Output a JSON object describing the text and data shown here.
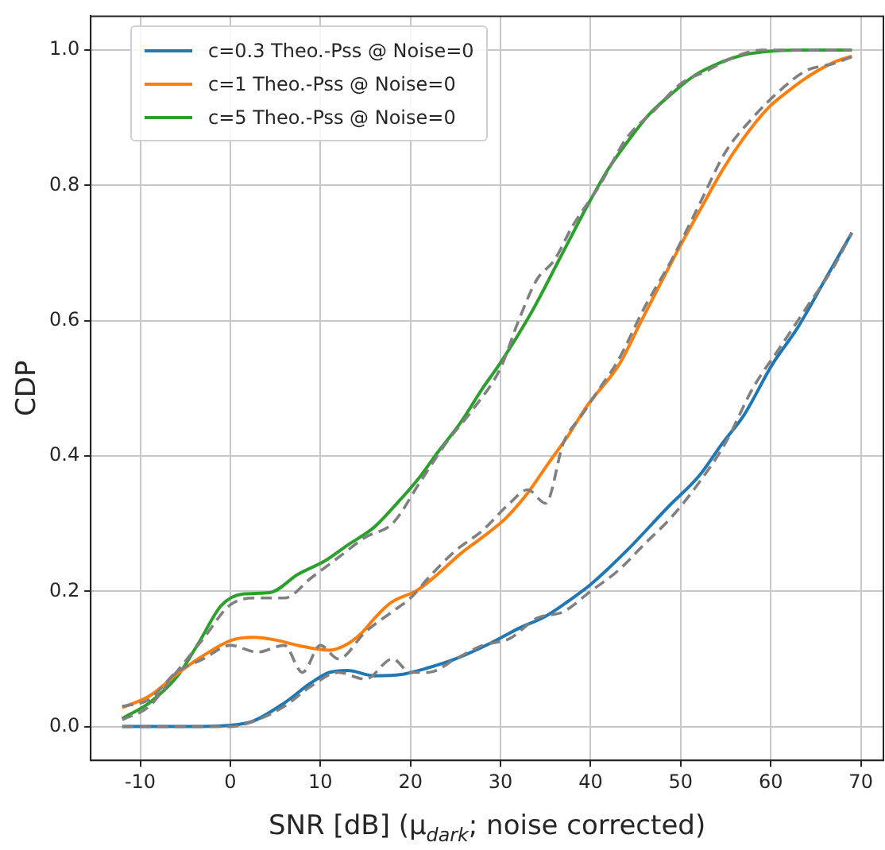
{
  "chart_data": {
    "type": "line",
    "xlabel": "SNR [dB] (μ$_{dark}$; noise corrected)",
    "ylabel": "CDP",
    "xlim": [
      -15.5,
      72.5
    ],
    "ylim": [
      -0.05,
      1.05
    ],
    "xticks": [
      -10,
      0,
      10,
      20,
      30,
      40,
      50,
      60,
      70
    ],
    "yticks": [
      {
        "value": 0,
        "label": "0.0"
      },
      {
        "value": 0.2,
        "label": "0.2"
      },
      {
        "value": 0.4,
        "label": "0.4"
      },
      {
        "value": 0.6,
        "label": "0.6"
      },
      {
        "value": 0.8,
        "label": "0.8"
      },
      {
        "value": 1,
        "label": "1.0"
      }
    ],
    "grid": true,
    "legend": "top left",
    "marker": "none",
    "series": [
      {
        "color": "#808080",
        "line_style": "dashed",
        "x": [
          -12,
          -9,
          -6,
          -3,
          0,
          3,
          6,
          9,
          12,
          15,
          18,
          20,
          22,
          25,
          28,
          31,
          34,
          37,
          40,
          43,
          46,
          49,
          52,
          55,
          58,
          61,
          64,
          67,
          69
        ],
        "values": [
          0.0,
          0.0,
          0.0,
          0.0,
          0.0,
          0.01,
          0.03,
          0.06,
          0.08,
          0.07,
          0.1,
          0.08,
          0.08,
          0.1,
          0.12,
          0.13,
          0.16,
          0.17,
          0.2,
          0.23,
          0.27,
          0.31,
          0.36,
          0.42,
          0.5,
          0.56,
          0.62,
          0.68,
          0.73
        ]
      },
      {
        "color": "#808080",
        "line_style": "dashed",
        "x": [
          -12,
          -9,
          -6,
          -3,
          0,
          3,
          6,
          8,
          10,
          12,
          15,
          18,
          20,
          22,
          25,
          28,
          31,
          33,
          35,
          37,
          39,
          41,
          43,
          46,
          49,
          52,
          55,
          58,
          61,
          64,
          67,
          69
        ],
        "values": [
          0.03,
          0.04,
          0.08,
          0.1,
          0.12,
          0.11,
          0.12,
          0.08,
          0.12,
          0.1,
          0.14,
          0.17,
          0.19,
          0.22,
          0.26,
          0.29,
          0.33,
          0.35,
          0.33,
          0.42,
          0.46,
          0.5,
          0.54,
          0.62,
          0.69,
          0.77,
          0.85,
          0.9,
          0.94,
          0.97,
          0.98,
          0.99
        ]
      },
      {
        "color": "#808080",
        "line_style": "dashed",
        "x": [
          -12,
          -9,
          -6,
          -3,
          0,
          3,
          6,
          9,
          12,
          15,
          18,
          21,
          24,
          27,
          30,
          32,
          34,
          36,
          38,
          41,
          44,
          47,
          50,
          53,
          56,
          59,
          62,
          65,
          69
        ],
        "values": [
          0.01,
          0.03,
          0.08,
          0.13,
          0.18,
          0.19,
          0.19,
          0.22,
          0.25,
          0.28,
          0.3,
          0.36,
          0.42,
          0.47,
          0.53,
          0.6,
          0.66,
          0.69,
          0.74,
          0.8,
          0.87,
          0.91,
          0.95,
          0.97,
          0.99,
          1.0,
          1.0,
          1.0,
          1.0
        ]
      },
      {
        "name": "c=0.3 Theo.-Pss @ Noise=0",
        "color": "#1f77b4",
        "line_style": "solid",
        "x": [
          -12,
          -5,
          0,
          2.5,
          6,
          9,
          11,
          13,
          16,
          19,
          22,
          25,
          29,
          32,
          35,
          38,
          40,
          44,
          48.7,
          52,
          54.7,
          57,
          60.2,
          63,
          66,
          69
        ],
        "values": [
          0.0,
          0.0,
          0.002,
          0.008,
          0.035,
          0.065,
          0.08,
          0.083,
          0.075,
          0.077,
          0.087,
          0.1,
          0.124,
          0.145,
          0.163,
          0.19,
          0.21,
          0.26,
          0.326,
          0.37,
          0.42,
          0.46,
          0.536,
          0.59,
          0.66,
          0.73
        ]
      },
      {
        "name": "c=1 Theo.-Pss @ Noise=0",
        "color": "#ff7f0e",
        "line_style": "solid",
        "x": [
          -12,
          -9,
          -5.9,
          -3,
          0.2,
          2.6,
          5,
          7.5,
          11,
          13,
          14.7,
          16,
          17.8,
          20.8,
          23,
          25.6,
          28,
          30.5,
          33,
          35.3,
          37.5,
          39.6,
          43.2,
          45.6,
          49.8,
          52,
          54.7,
          57,
          59.6,
          62,
          64.4,
          67,
          69
        ],
        "values": [
          0.028,
          0.045,
          0.078,
          0.105,
          0.128,
          0.132,
          0.128,
          0.12,
          0.113,
          0.122,
          0.14,
          0.16,
          0.183,
          0.202,
          0.225,
          0.256,
          0.28,
          0.307,
          0.345,
          0.389,
          0.43,
          0.474,
          0.536,
          0.599,
          0.707,
          0.76,
          0.824,
          0.87,
          0.913,
          0.94,
          0.963,
          0.982,
          0.991
        ]
      },
      {
        "name": "c=5 Theo.-Pss @ Noise=0",
        "color": "#2ca02c",
        "line_style": "solid",
        "x": [
          -12,
          -9,
          -5.9,
          -3.5,
          -1,
          1.4,
          4.4,
          7.5,
          10.5,
          13,
          16,
          18.5,
          20.8,
          23,
          25.6,
          28,
          29.9,
          33.5,
          36.5,
          39.6,
          42,
          44.4,
          46.5,
          48.7,
          51.5,
          54.7,
          57,
          59.6,
          63,
          66,
          69
        ],
        "values": [
          0.012,
          0.035,
          0.074,
          0.124,
          0.179,
          0.196,
          0.198,
          0.225,
          0.245,
          0.268,
          0.295,
          0.33,
          0.365,
          0.405,
          0.45,
          0.5,
          0.536,
          0.614,
          0.69,
          0.769,
          0.825,
          0.87,
          0.905,
          0.932,
          0.962,
          0.983,
          0.993,
          0.998,
          1.0,
          1.0,
          1.0
        ]
      }
    ]
  }
}
